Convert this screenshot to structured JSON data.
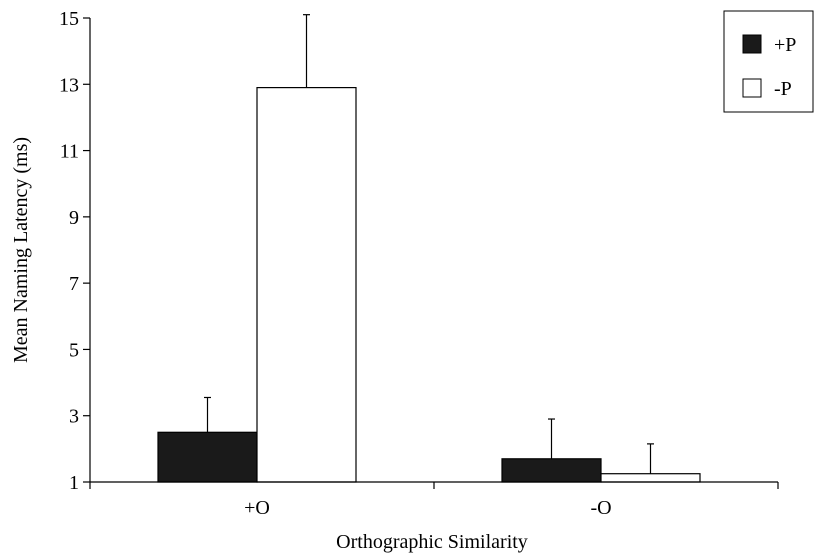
{
  "chart_data": {
    "type": "bar",
    "title": "",
    "xlabel": "Orthographic Similarity",
    "ylabel": "Mean Naming Latency (ms)",
    "categories": [
      "+O",
      "-O"
    ],
    "series": [
      {
        "name": "+P",
        "values": [
          2.5,
          1.7
        ],
        "errors": [
          1.05,
          1.2
        ],
        "color": "#1a1a1a"
      },
      {
        "name": "-P",
        "values": [
          12.9,
          1.25
        ],
        "errors": [
          2.2,
          0.9
        ],
        "color": "#ffffff"
      }
    ],
    "ylim": [
      1,
      15
    ],
    "yticks": [
      "1",
      "3",
      "5",
      "7",
      "9",
      "11",
      "13",
      "15"
    ],
    "grid": false,
    "legend": "top-right"
  }
}
